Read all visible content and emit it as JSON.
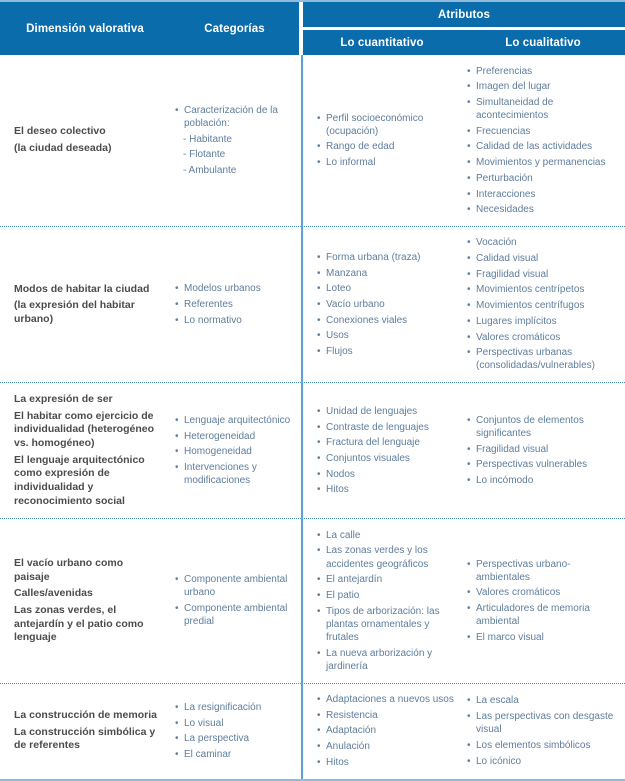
{
  "header": {
    "col_dimension": "Dimensión valorativa",
    "col_categorias": "Categorías",
    "col_atributos": "Atributos",
    "col_cuantitativo": "Lo cuantitativo",
    "col_cualitativo": "Lo cualitativo"
  },
  "colors": {
    "header_bg": "#0b6cac",
    "divider_blue": "#5ca2d4",
    "dotted_separator": "#4a90c8",
    "outer_line": "#8fbcdc",
    "list_text": "#5f7e9c",
    "dimension_text": "#4c4c4e"
  },
  "rows": [
    {
      "dimension": [
        "El deseo colectivo",
        "(la ciudad deseada)"
      ],
      "categories": [
        "Caracterización de la población:",
        "- Habitante",
        "- Flotante",
        "- Ambulante"
      ],
      "cuantitativo": [
        "Perfil socioeconómico (ocupación)",
        "Rango de edad",
        "Lo informal"
      ],
      "cualitativo": [
        "Preferencias",
        "Imagen del lugar",
        "Simultaneidad de acontecimientos",
        "Frecuencias",
        "Calidad de las actividades",
        "Movimientos y permanencias",
        "Perturbación",
        "Interacciones",
        "Necesidades"
      ]
    },
    {
      "dimension": [
        "Modos de habitar la ciudad",
        "(la expresión del habitar urbano)"
      ],
      "categories": [
        "Modelos urbanos",
        "Referentes",
        "Lo normativo"
      ],
      "cuantitativo": [
        "Forma urbana (traza)",
        "Manzana",
        "Loteo",
        "Vacío urbano",
        "Conexiones viales",
        "Usos",
        "Flujos"
      ],
      "cualitativo": [
        "Vocación",
        "Calidad visual",
        "Fragilidad visual",
        "Movimientos centrípetos",
        "Movimientos centrífugos",
        "Lugares implícitos",
        "Valores cromáticos",
        "Perspectivas urbanas (consolidadas/vulnerables)"
      ]
    },
    {
      "dimension": [
        "La expresión de ser",
        "El habitar como ejercicio de individualidad (heterogéneo vs. homogéneo)",
        "El lenguaje arquitectónico como expresión de individualidad y reconocimiento social"
      ],
      "categories": [
        "Lenguaje arquitectónico",
        "Heterogeneidad",
        "Homogeneidad",
        "Intervenciones y modificaciones"
      ],
      "cuantitativo": [
        "Unidad de lenguajes",
        "Contraste de lenguajes",
        "Fractura del lenguaje",
        "Conjuntos visuales",
        "Nodos",
        "Hitos"
      ],
      "cualitativo": [
        "Conjuntos de elementos significantes",
        "Fragilidad visual",
        "Perspectivas vulnerables",
        "Lo incómodo"
      ]
    },
    {
      "dimension": [
        "El vacío urbano como paisaje",
        "Calles/avenidas",
        "Las zonas verdes, el antejardín y el patio como lenguaje"
      ],
      "categories": [
        "Componente ambiental urbano",
        "Componente ambiental predial"
      ],
      "cuantitativo": [
        "La calle",
        "Las zonas verdes y los accidentes geográficos",
        "El antejardín",
        "El patio",
        "Tipos de arborización: las plantas ornamentales y frutales",
        "La nueva arborización y jardinería"
      ],
      "cualitativo": [
        "Perspectivas urbano-ambientales",
        "Valores cromáticos",
        "Articuladores de memoria ambiental",
        "El marco visual"
      ]
    },
    {
      "dimension": [
        "La construcción de memoria",
        "La construcción simbólica y de referentes"
      ],
      "categories": [
        "La resignificación",
        "Lo visual",
        "La perspectiva",
        "El caminar"
      ],
      "cuantitativo": [
        "Adaptaciones a nuevos usos",
        "Resistencia",
        "Adaptación",
        "Anulación",
        "Hitos"
      ],
      "cualitativo": [
        "La escala",
        "Las perspectivas con desgaste visual",
        "Los elementos simbólicos",
        "Lo icónico"
      ]
    }
  ]
}
